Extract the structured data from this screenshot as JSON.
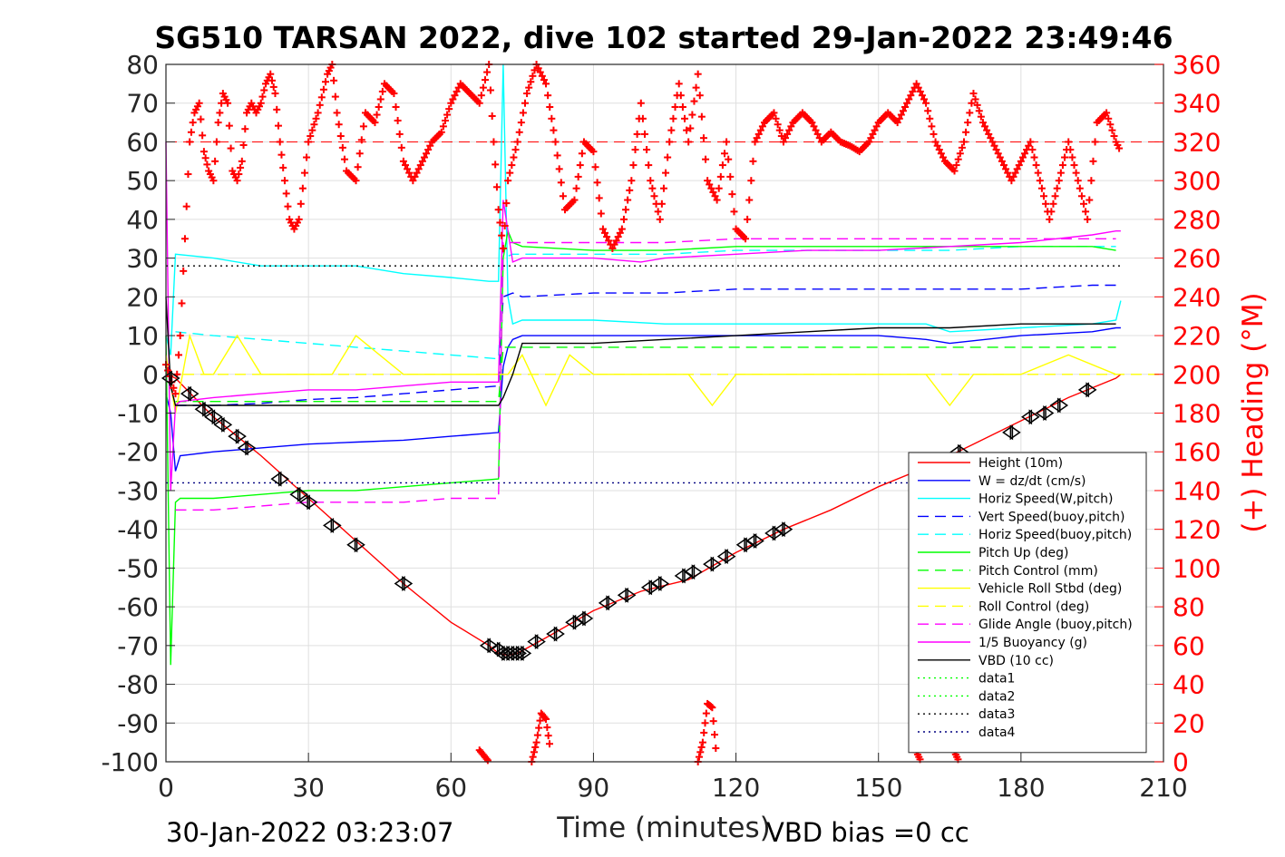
{
  "chart_data": {
    "type": "line",
    "title": "SG510 TARSAN 2022, dive 102 started 29-Jan-2022 23:49:46",
    "xlabel": "Time (minutes)",
    "ylabel_right": "(+) Heading (°M)",
    "footer_left": "30-Jan-2022 03:23:07",
    "footer_right": "VBD bias =0 cc",
    "xlim": [
      0,
      210
    ],
    "ylim": [
      -100,
      80
    ],
    "ylim_right": [
      0,
      360
    ],
    "x_ticks": [
      "0",
      "30",
      "60",
      "90",
      "120",
      "150",
      "180",
      "210"
    ],
    "y_ticks": [
      "80",
      "70",
      "60",
      "50",
      "40",
      "30",
      "20",
      "10",
      "0",
      "-10",
      "-20",
      "-30",
      "-40",
      "-50",
      "-60",
      "-70",
      "-80",
      "-90",
      "-100"
    ],
    "y_ticks_right": [
      "360",
      "340",
      "320",
      "300",
      "280",
      "260",
      "240",
      "220",
      "200",
      "180",
      "160",
      "140",
      "120",
      "100",
      "80",
      "60",
      "40",
      "20",
      "0"
    ],
    "grid": true,
    "legend_position": "bottom-right",
    "colors": {
      "height": "#ff0000",
      "w": "#0000ff",
      "horiz_speed": "#00ffff",
      "pitch": "#00ff00",
      "roll": "#ffff00",
      "glide": "#ff00ff",
      "buoyancy": "#ff00ff",
      "vbd": "#000000",
      "heading": "#ff0000",
      "data12": "#00ff00",
      "data34": "#000080"
    },
    "series": [
      {
        "name": "Height (10m)",
        "style": "solid",
        "color": "#ff0000",
        "x": [
          0,
          2,
          10,
          20,
          30,
          40,
          50,
          60,
          68,
          70,
          72,
          74,
          80,
          90,
          100,
          110,
          120,
          130,
          140,
          150,
          160,
          170,
          180,
          190,
          200,
          201
        ],
        "y": [
          0,
          -1,
          -11,
          -21,
          -32,
          -43,
          -54,
          -64,
          -70,
          -72,
          -72.5,
          -72,
          -68,
          -61,
          -56,
          -53,
          -46,
          -40,
          -35,
          -29,
          -24,
          -18,
          -12,
          -6,
          -1,
          0
        ]
      },
      {
        "name": "W = dz/dt (cm/s)",
        "style": "solid",
        "color": "#0000ff",
        "x": [
          0,
          1,
          2,
          3,
          10,
          20,
          30,
          40,
          50,
          60,
          70,
          71,
          72,
          73,
          75,
          90,
          105,
          120,
          135,
          150,
          160,
          165,
          180,
          195,
          200,
          201
        ],
        "y": [
          -5,
          -10,
          -25,
          -21,
          -20,
          -19,
          -18,
          -17.5,
          -17,
          -16,
          -15,
          2,
          7,
          9,
          10,
          10,
          10,
          10,
          10,
          10,
          9,
          8,
          10,
          11,
          12,
          12
        ]
      },
      {
        "name": "Horiz Speed(W,pitch)",
        "style": "solid",
        "color": "#00ffff",
        "x": [
          0,
          1,
          2,
          10,
          20,
          30,
          40,
          50,
          60,
          68,
          70,
          71,
          72,
          73,
          75,
          90,
          105,
          120,
          135,
          150,
          160,
          165,
          180,
          195,
          200,
          201
        ],
        "y": [
          10,
          5,
          31,
          30,
          28,
          28,
          28,
          26,
          25,
          24,
          24,
          80,
          20,
          13,
          14,
          14,
          13,
          13,
          13,
          13,
          13,
          11,
          12,
          13,
          14,
          19
        ]
      },
      {
        "name": "Vert Speed(buoy,pitch)",
        "style": "dashed",
        "color": "#0000ff",
        "x": [
          2,
          10,
          20,
          30,
          40,
          50,
          60,
          70,
          71,
          73,
          75,
          90,
          105,
          120,
          135,
          150,
          165,
          180,
          195,
          200
        ],
        "y": [
          -8,
          -8,
          -7.5,
          -6.5,
          -6,
          -5,
          -4,
          -3,
          20,
          21,
          20,
          21,
          21,
          22,
          22,
          22,
          22,
          22,
          23,
          23
        ]
      },
      {
        "name": "Horiz Speed(buoy,pitch)",
        "style": "dashed",
        "color": "#00ffff",
        "x": [
          2,
          10,
          20,
          30,
          40,
          50,
          60,
          70,
          71,
          73,
          75,
          90,
          105,
          120,
          135,
          150,
          165,
          180,
          195,
          200
        ],
        "y": [
          11,
          10,
          9,
          8,
          7,
          6,
          5,
          4,
          30,
          31,
          31,
          31,
          31,
          32,
          32,
          32,
          32,
          33,
          33,
          33
        ]
      },
      {
        "name": "Pitch Up (deg)",
        "style": "solid",
        "color": "#00ff00",
        "x": [
          0,
          1,
          2,
          3,
          10,
          20,
          30,
          40,
          50,
          60,
          70,
          71,
          72,
          73,
          75,
          90,
          105,
          120,
          135,
          150,
          165,
          180,
          195,
          200
        ],
        "y": [
          10,
          -75,
          -33,
          -32,
          -32,
          -31,
          -30,
          -30,
          -29,
          -28,
          -27,
          30,
          37,
          34,
          33,
          32,
          32,
          33,
          33,
          33,
          33,
          33,
          33,
          32
        ]
      },
      {
        "name": "Pitch Control (mm)",
        "style": "dashed",
        "color": "#00ff00",
        "x": [
          2,
          10,
          30,
          50,
          70,
          71,
          75,
          100,
          130,
          160,
          200
        ],
        "y": [
          -7,
          -7,
          -7,
          -7,
          -7,
          7,
          7,
          7,
          7,
          7,
          7
        ]
      },
      {
        "name": "Vehicle Roll Stbd (deg)",
        "style": "solid",
        "color": "#ffff00",
        "x": [
          0,
          2,
          5,
          8,
          10,
          15,
          20,
          25,
          30,
          35,
          40,
          50,
          60,
          70,
          72,
          75,
          80,
          85,
          90,
          100,
          110,
          115,
          120,
          130,
          140,
          150,
          160,
          165,
          170,
          180,
          190,
          200
        ],
        "y": [
          5,
          -10,
          10,
          0,
          0,
          10,
          0,
          0,
          0,
          0,
          10,
          0,
          0,
          0,
          0,
          5,
          -8,
          5,
          0,
          0,
          0,
          -8,
          0,
          0,
          0,
          0,
          0,
          -8,
          0,
          0,
          5,
          0
        ]
      },
      {
        "name": "Roll Control (deg)",
        "style": "dashed",
        "color": "#ffff00",
        "x": [
          0,
          210
        ],
        "y": [
          0,
          0
        ]
      },
      {
        "name": "Glide Angle (buoy,pitch)",
        "style": "dashed",
        "color": "#ff00ff",
        "x": [
          2,
          10,
          20,
          30,
          40,
          50,
          60,
          70,
          71,
          73,
          75,
          90,
          105,
          120,
          135,
          150,
          165,
          180,
          195,
          200
        ],
        "y": [
          -35,
          -35,
          -34,
          -33,
          -33,
          -33,
          -32,
          -32,
          34,
          34,
          34,
          34,
          34,
          35,
          35,
          35,
          35,
          35,
          35,
          35
        ]
      },
      {
        "name": "1/5 Buoyancy (g)",
        "style": "solid",
        "color": "#ff00ff",
        "x": [
          0,
          1,
          2,
          3,
          10,
          20,
          30,
          40,
          50,
          60,
          70,
          71,
          73,
          75,
          90,
          100,
          105,
          120,
          135,
          150,
          165,
          180,
          195,
          200,
          201
        ],
        "y": [
          60,
          -30,
          -8,
          -7,
          -6,
          -5,
          -4,
          -4,
          -3,
          -2,
          -2,
          45,
          29,
          30,
          30,
          29,
          30,
          31,
          32,
          32,
          33,
          34,
          36,
          37,
          37
        ]
      },
      {
        "name": "VBD (10 cc)",
        "style": "solid",
        "color": "#000000",
        "x": [
          0,
          1,
          2,
          70,
          71,
          73,
          75,
          90,
          105,
          120,
          135,
          150,
          165,
          180,
          200
        ],
        "y": [
          20,
          -3,
          -8,
          -8,
          -6,
          0,
          8,
          8,
          9,
          10,
          11,
          12,
          12,
          13,
          13
        ]
      },
      {
        "name": "data1",
        "style": "dotted",
        "color": "#00ff00",
        "x": [
          0,
          0
        ],
        "y": [
          0,
          0
        ]
      },
      {
        "name": "data2",
        "style": "dotted",
        "color": "#00ff00",
        "x": [
          0,
          0
        ],
        "y": [
          0,
          0
        ]
      },
      {
        "name": "data3",
        "style": "dotted",
        "color": "#000000",
        "x": [
          0,
          201
        ],
        "y": [
          28,
          28
        ]
      },
      {
        "name": "data4",
        "style": "dotted",
        "color": "#000080",
        "x": [
          0,
          201
        ],
        "y": [
          -28,
          -28
        ]
      }
    ],
    "heading_series": {
      "axis": "right",
      "marker": "plus",
      "color": "#ff0000",
      "x": [
        0,
        2,
        3,
        4,
        5,
        6,
        7,
        8,
        9,
        10,
        11,
        12,
        13,
        14,
        15,
        16,
        17,
        18,
        19,
        20,
        21,
        22,
        23,
        24,
        25,
        26,
        27,
        28,
        30,
        32,
        34,
        35,
        36,
        38,
        40,
        42,
        44,
        46,
        48,
        50,
        52,
        54,
        56,
        58,
        60,
        62,
        64,
        66,
        68,
        69,
        70,
        71,
        72,
        74,
        76,
        78,
        80,
        82,
        84,
        86,
        88,
        90,
        92,
        94,
        96,
        98,
        100,
        102,
        104,
        106,
        108,
        110,
        112,
        114,
        116,
        118,
        120,
        122,
        124,
        126,
        128,
        130,
        132,
        134,
        136,
        138,
        140,
        142,
        144,
        146,
        148,
        150,
        152,
        154,
        156,
        158,
        160,
        162,
        164,
        166,
        168,
        170,
        172,
        174,
        176,
        178,
        180,
        182,
        184,
        186,
        188,
        190,
        192,
        194,
        196,
        198,
        200,
        201
      ],
      "y": [
        205,
        190,
        220,
        270,
        320,
        335,
        340,
        315,
        305,
        300,
        330,
        345,
        340,
        305,
        300,
        310,
        335,
        340,
        335,
        340,
        350,
        355,
        345,
        320,
        300,
        280,
        275,
        280,
        320,
        335,
        355,
        360,
        335,
        305,
        300,
        335,
        330,
        350,
        345,
        310,
        300,
        310,
        320,
        325,
        340,
        350,
        345,
        340,
        360,
        320,
        285,
        265,
        300,
        320,
        345,
        360,
        350,
        320,
        285,
        290,
        320,
        315,
        275,
        265,
        275,
        300,
        340,
        300,
        280,
        320,
        350,
        320,
        355,
        300,
        290,
        320,
        275,
        270,
        320,
        330,
        335,
        320,
        330,
        335,
        330,
        320,
        325,
        320,
        318,
        315,
        320,
        330,
        335,
        330,
        340,
        350,
        340,
        320,
        310,
        305,
        320,
        345,
        330,
        320,
        310,
        300,
        310,
        320,
        300,
        280,
        300,
        320,
        300,
        280,
        330,
        335,
        320,
        315
      ]
    },
    "heading_low_clusters": [
      {
        "x": [
          66,
          67,
          68
        ],
        "y": [
          6,
          3,
          0
        ]
      },
      {
        "x": [
          77,
          78,
          79,
          80,
          81
        ],
        "y": [
          0,
          10,
          25,
          22,
          5
        ]
      },
      {
        "x": [
          112,
          113,
          114,
          115,
          116
        ],
        "y": [
          0,
          10,
          30,
          28,
          0
        ]
      },
      {
        "x": [
          158,
          159
        ],
        "y": [
          5,
          0
        ]
      },
      {
        "x": [
          166,
          167
        ],
        "y": [
          5,
          0
        ]
      }
    ],
    "heading_target": {
      "value_right": 320,
      "style": "dashed",
      "color": "#ff0000"
    },
    "gc_markers": {
      "x": [
        1,
        5,
        8,
        10,
        12,
        15,
        17,
        24,
        28,
        30,
        35,
        40,
        50,
        68,
        70,
        71,
        72,
        73,
        74,
        75,
        78,
        82,
        86,
        88,
        93,
        97,
        102,
        104,
        109,
        111,
        115,
        118,
        122,
        124,
        128,
        130,
        167,
        178,
        182,
        185,
        188,
        194
      ],
      "y": [
        -1,
        -5,
        -9,
        -11,
        -13,
        -16,
        -19,
        -27,
        -31,
        -33,
        -39,
        -44,
        -54,
        -70,
        -71,
        -72,
        -72,
        -72,
        -72,
        -72,
        -69,
        -67,
        -64,
        -63,
        -59,
        -57,
        -55,
        -54,
        -52,
        -51,
        -49,
        -47,
        -44,
        -43,
        -41,
        -40,
        -20,
        -15,
        -11,
        -10,
        -8,
        -4
      ]
    }
  }
}
